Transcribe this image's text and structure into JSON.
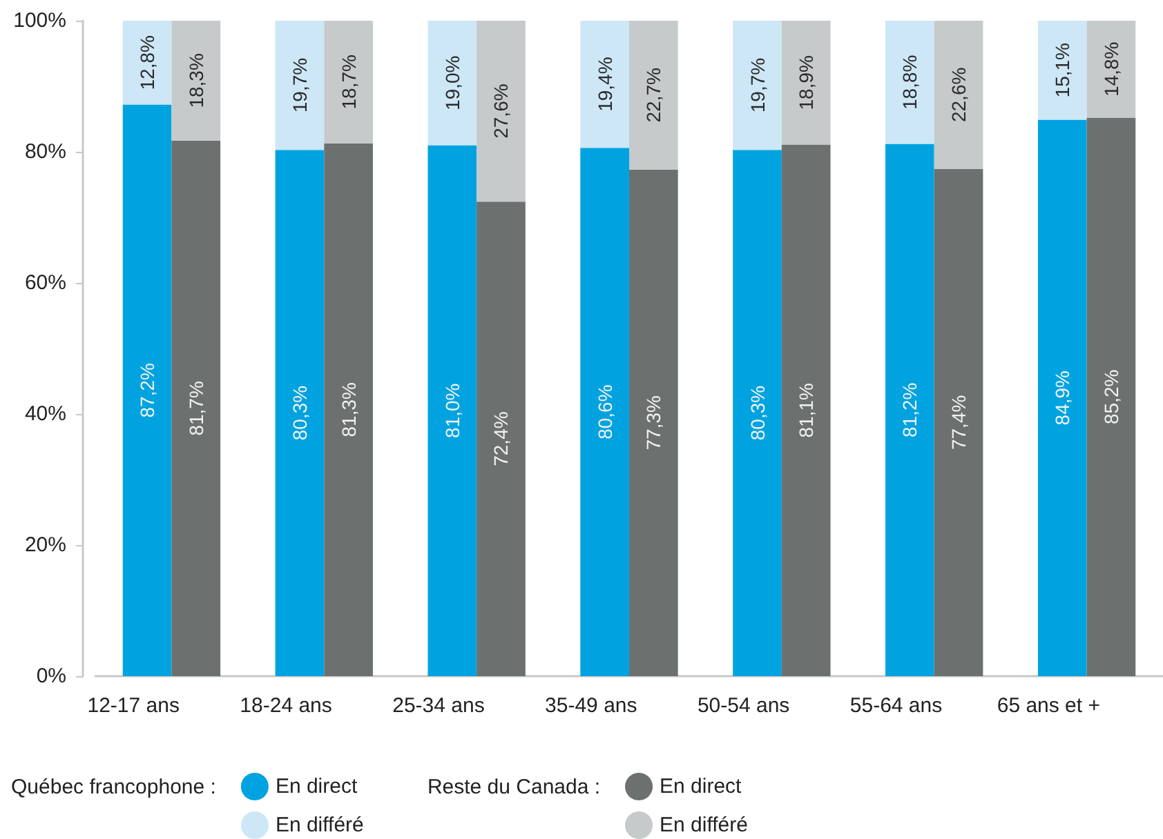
{
  "chart_data": {
    "type": "bar",
    "stacked": true,
    "categories": [
      "12-17 ans",
      null,
      "18-24 ans",
      null,
      "25-34 ans",
      null,
      "35-49 ans",
      null,
      "50-54 ans",
      null,
      "55-64 ans",
      null,
      "65 ans et +",
      null
    ],
    "legend_title": [
      "Québec francophone :",
      "Reste du Canada :"
    ],
    "series": [
      {
        "name": "En direct",
        "color": "#00a3e0",
        "values": [
          87.2,
          null,
          80.3,
          null,
          81.0,
          null,
          80.6,
          null,
          80.3,
          null,
          81.2,
          null,
          84.9,
          null
        ],
        "value_labels": [
          "87,2%",
          null,
          "80,3%",
          null,
          "81,0%",
          null,
          "80,6%",
          null,
          "80,3%",
          null,
          "81,2%",
          null,
          "84,9%",
          null
        ]
      },
      {
        "name": "En différé",
        "color": "#cde7f7",
        "values": [
          12.8,
          null,
          19.7,
          null,
          19.0,
          null,
          19.4,
          null,
          19.7,
          null,
          18.8,
          null,
          15.1,
          null
        ],
        "value_labels": [
          "12,8%",
          null,
          "19,7%",
          null,
          "19,0%",
          null,
          "19,4%",
          null,
          "19,7%",
          null,
          "18,8%",
          null,
          "15,1%",
          null
        ]
      },
      {
        "name": "En direct",
        "color": "#6c7170",
        "values": [
          null,
          81.7,
          null,
          81.3,
          null,
          72.4,
          null,
          77.3,
          null,
          81.1,
          null,
          77.4,
          null,
          85.2
        ],
        "value_labels": [
          null,
          "81,7%",
          null,
          "81,3%",
          null,
          "72,4%",
          null,
          "77,3%",
          null,
          "81,1%",
          null,
          "77,4%",
          null,
          "85,2%"
        ]
      },
      {
        "name": "En différé",
        "color": "#c6cacb",
        "values": [
          null,
          18.3,
          null,
          18.7,
          null,
          27.6,
          null,
          22.7,
          null,
          18.9,
          null,
          22.6,
          null,
          14.8
        ],
        "value_labels": [
          null,
          "18,3%",
          null,
          "18,7%",
          null,
          "27,6%",
          null,
          "22,7%",
          null,
          "18,9%",
          null,
          "22,6%",
          null,
          "14,8%"
        ]
      }
    ],
    "ylim": [
      0,
      100
    ],
    "yticks": [
      {
        "value": 0,
        "label": "0%"
      },
      {
        "value": 20,
        "label": "20%"
      },
      {
        "value": 40,
        "label": "40%"
      },
      {
        "value": 60,
        "label": "60%"
      },
      {
        "value": 80,
        "label": "80%"
      },
      {
        "value": 100,
        "label": "100%"
      }
    ],
    "legend": "bottom left",
    "grid": false
  }
}
